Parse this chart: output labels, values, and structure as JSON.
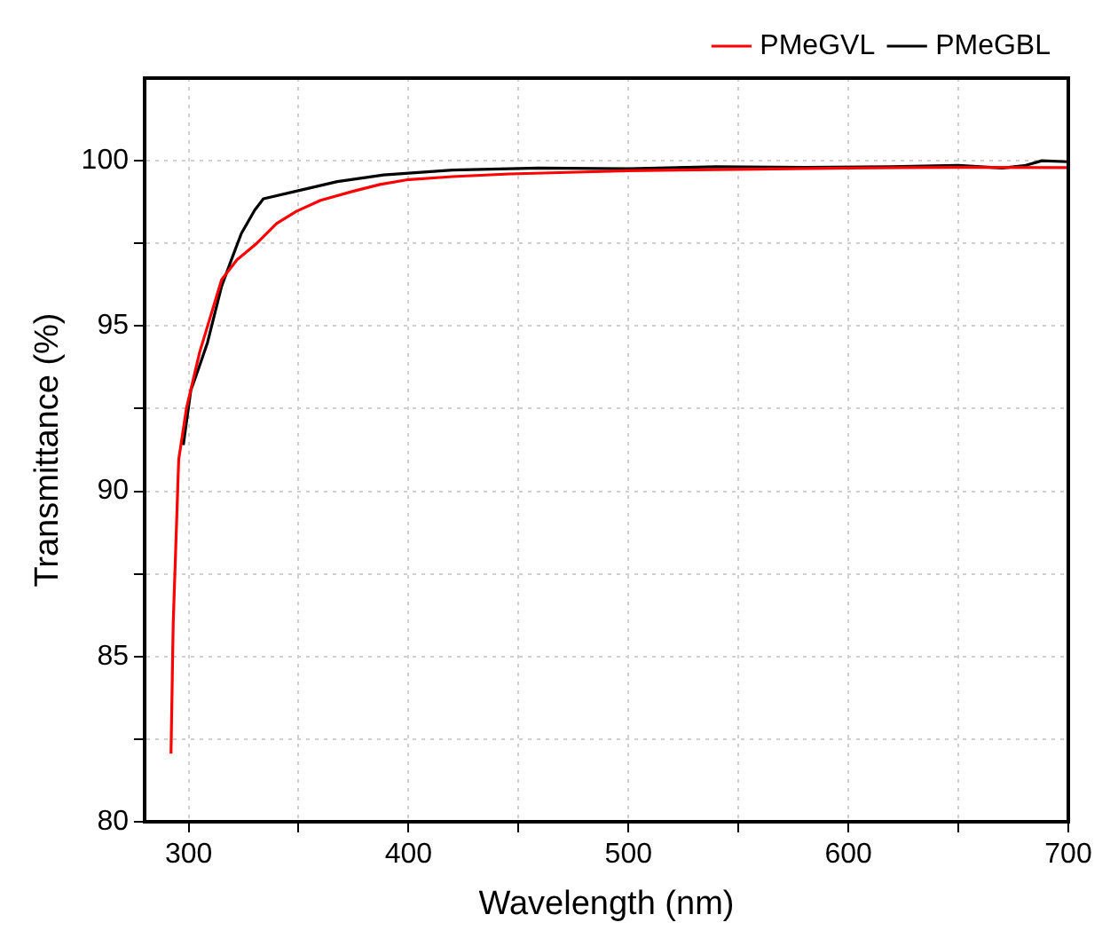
{
  "chart_data": {
    "type": "line",
    "xlabel": "Wavelength (nm)",
    "ylabel": "Transmittance (%)",
    "xlim": [
      280,
      700
    ],
    "xticks": [
      300,
      {
        "value": 350,
        "label": null
      },
      400,
      {
        "value": 450,
        "label": null
      },
      500,
      {
        "value": 550,
        "label": null
      },
      600,
      {
        "value": 650,
        "label": null
      },
      700
    ],
    "ylim": [
      80,
      102.5
    ],
    "yticks": [
      80,
      {
        "value": 82.5,
        "label": null
      },
      85,
      {
        "value": 87.5,
        "label": null
      },
      90,
      {
        "value": 92.5,
        "label": null
      },
      95,
      {
        "value": 97.5,
        "label": null
      },
      100
    ],
    "grid": true,
    "legend": "top",
    "marker": "none",
    "line_style": "solid",
    "series": [
      {
        "name": "PMeGVL",
        "color": "#ff0000",
        "x": [
          292,
          293,
          295.5,
          299,
          305,
          310,
          315,
          322,
          331,
          340,
          349,
          360,
          375,
          387,
          399,
          420,
          446,
          480,
          500,
          550,
          600,
          650,
          700
        ],
        "values": [
          82.06,
          86,
          90.96,
          92.5,
          94.2,
          95.3,
          96.4,
          97,
          97.5,
          98.1,
          98.47,
          98.8,
          99.08,
          99.28,
          99.42,
          99.52,
          99.6,
          99.66,
          99.7,
          99.74,
          99.78,
          99.8,
          99.79
        ]
      },
      {
        "name": "PMeGBL",
        "color": "#000000",
        "x": [
          297.6,
          301,
          305,
          308.6,
          315,
          320,
          324,
          330,
          334,
          349,
          367.6,
          388.7,
          420,
          459,
          500,
          540,
          580,
          620,
          650,
          670,
          680,
          688,
          700
        ],
        "values": [
          91.4,
          93.05,
          93.8,
          94.5,
          96.2,
          97.1,
          97.8,
          98.5,
          98.85,
          99.08,
          99.37,
          99.57,
          99.72,
          99.78,
          99.76,
          99.82,
          99.8,
          99.82,
          99.86,
          99.78,
          99.85,
          100,
          99.97
        ]
      }
    ]
  }
}
